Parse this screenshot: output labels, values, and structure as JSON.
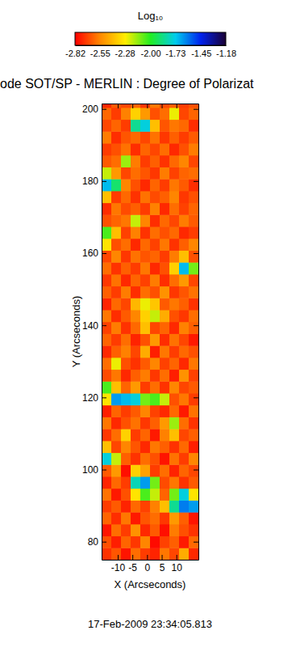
{
  "chart_data": {
    "type": "heatmap",
    "title": "ode SOT/SP - MERLIN : Degree of Polarizat",
    "x_label": "X (Arcseconds)",
    "y_label": "Y (Arcseconds)",
    "annotation": "17-Feb-2009 23:34:05.813",
    "xlim": [
      -15.5,
      17.5
    ],
    "xticks": [
      -10,
      -5,
      0,
      5,
      10
    ],
    "ylim": [
      75,
      201.5
    ],
    "yticks": [
      80,
      100,
      120,
      140,
      160,
      180,
      200
    ],
    "colorbar": {
      "title": "Log₁₀",
      "range": [
        -2.82,
        -1.18
      ],
      "ticks": [
        -2.82,
        -2.55,
        -2.28,
        {
          "value": -2,
          "label": "-2.00"
        },
        -1.73,
        -1.45,
        -1.18
      ]
    },
    "x": [
      -13.85,
      -10.55,
      -7.25,
      -3.95,
      -0.65,
      2.65,
      5.95,
      9.25,
      12.55,
      15.85
    ],
    "y": [
      76.65,
      79.95,
      83.25,
      86.55,
      89.85,
      93.15,
      96.45,
      99.75,
      103.05,
      106.35,
      109.65,
      112.95,
      116.25,
      119.55,
      122.85,
      126.15,
      129.45,
      132.75,
      136.05,
      139.35,
      142.65,
      145.95,
      149.25,
      152.55,
      155.85,
      159.15,
      162.45,
      165.75,
      169.05,
      172.35,
      175.65,
      178.95,
      182.25,
      185.55,
      188.85,
      192.15,
      195.45,
      198.75,
      202.05
    ],
    "z": [
      [
        -2.72,
        -2.65,
        -2.78,
        -2.6,
        -2.7,
        -2.75,
        -2.58,
        -2.68,
        -2.45,
        -2.74
      ],
      [
        -2.66,
        -2.76,
        -2.62,
        -2.71,
        -2.55,
        -2.8,
        -2.69,
        -2.63,
        -2.77,
        -2.61
      ],
      [
        -2.78,
        -2.6,
        -2.7,
        -2.52,
        -2.74,
        -2.64,
        -2.79,
        -2.57,
        -2.66,
        -2.72
      ],
      [
        -2.62,
        -2.73,
        -2.58,
        -2.77,
        -2.65,
        -2.6,
        -2.71,
        -2.5,
        -2.63,
        -2.78
      ],
      [
        -2.7,
        -2.64,
        -2.75,
        -2.61,
        -2.69,
        -2.56,
        -2.4,
        -1.85,
        -1.6,
        -1.65
      ],
      [
        -2.59,
        -2.77,
        -2.66,
        -2.3,
        -2.05,
        -2.2,
        -2.62,
        -2.1,
        -1.75,
        -2.3
      ],
      [
        -2.75,
        -2.61,
        -2.7,
        -1.8,
        -1.65,
        -2.1,
        -2.67,
        -2.58,
        -2.72,
        -2.64
      ],
      [
        -2.64,
        -2.5,
        -2.79,
        -2.35,
        -2.48,
        -2.7,
        -2.6,
        -2.75,
        -2.62,
        -2.68
      ],
      [
        -1.75,
        -2.2,
        -2.63,
        -2.72,
        -2.6,
        -2.66,
        -2.78,
        -2.59,
        -2.7,
        -2.55
      ],
      [
        -2.4,
        -2.68,
        -2.55,
        -2.65,
        -2.74,
        -2.58,
        -2.63,
        -2.72,
        -2.61,
        -2.76
      ],
      [
        -2.71,
        -2.6,
        -2.35,
        -2.7,
        -2.62,
        -2.77,
        -2.56,
        -2.4,
        -2.68,
        -2.63
      ],
      [
        -2.58,
        -2.74,
        -2.66,
        -2.59,
        -2.71,
        -2.63,
        -2.5,
        -2.15,
        -2.6,
        -2.72
      ],
      [
        -2.76,
        -2.62,
        -2.7,
        -2.64,
        -2.55,
        -2.69,
        -2.74,
        -2.61,
        -2.77,
        -2.59
      ],
      [
        -2.3,
        -1.65,
        -1.7,
        -1.75,
        -2.1,
        -2.05,
        -2.2,
        -2.66,
        -2.58,
        -2.7
      ],
      [
        -2.05,
        -2.4,
        -2.62,
        -2.5,
        -2.7,
        -2.6,
        -2.72,
        -2.55,
        -2.68,
        -2.64
      ],
      [
        -2.67,
        -2.58,
        -2.74,
        -2.63,
        -2.57,
        -2.71,
        -2.6,
        -2.76,
        -2.52,
        -2.69
      ],
      [
        -2.6,
        -2.25,
        -2.66,
        -2.72,
        -2.64,
        -2.55,
        -2.69,
        -2.62,
        -2.74,
        -2.58
      ],
      [
        -2.74,
        -2.63,
        -2.56,
        -2.68,
        -2.45,
        -2.76,
        -2.58,
        -2.7,
        -2.61,
        -2.66
      ],
      [
        -2.62,
        -2.7,
        -2.6,
        -2.75,
        -2.66,
        -2.5,
        -2.73,
        -2.59,
        -2.68,
        -2.77
      ],
      [
        -2.69,
        -2.57,
        -2.72,
        -2.61,
        -2.4,
        -2.68,
        -2.62,
        -2.74,
        -2.56,
        -2.63
      ],
      [
        -2.58,
        -2.73,
        -2.64,
        -2.55,
        -2.35,
        -2.2,
        -2.45,
        -2.66,
        -2.71,
        -2.6
      ],
      [
        -2.75,
        -2.61,
        -2.68,
        -2.42,
        -2.25,
        -2.38,
        -2.64,
        -2.58,
        -2.63,
        -2.72
      ],
      [
        -2.63,
        -2.7,
        -2.57,
        -2.73,
        -2.6,
        -2.66,
        -2.52,
        -2.71,
        -2.65,
        -2.59
      ],
      [
        -2.71,
        -2.59,
        -2.74,
        -2.62,
        -2.69,
        -2.57,
        -2.73,
        -2.6,
        -2.5,
        -2.68
      ],
      [
        -2.6,
        -2.72,
        -2.63,
        -2.7,
        -2.58,
        -2.74,
        -2.66,
        -2.35,
        -1.7,
        -2.1
      ],
      [
        -2.68,
        -2.55,
        -2.71,
        -2.59,
        -2.65,
        -2.62,
        -2.7,
        -2.57,
        -2.4,
        -2.66
      ],
      [
        -2.3,
        -2.66,
        -2.6,
        -2.74,
        -2.61,
        -2.69,
        -2.58,
        -2.72,
        -2.63,
        -2.55
      ],
      [
        -2.05,
        -2.4,
        -2.69,
        -2.56,
        -2.72,
        -2.6,
        -2.66,
        -2.61,
        -2.74,
        -2.7
      ],
      [
        -2.66,
        -2.62,
        -2.58,
        -2.2,
        -2.55,
        -2.73,
        -2.61,
        -2.68,
        -2.57,
        -2.64
      ],
      [
        -2.73,
        -2.58,
        -2.67,
        -2.63,
        -2.7,
        -2.56,
        -2.74,
        -2.6,
        -2.69,
        -2.62
      ],
      [
        -2.4,
        -2.7,
        -2.61,
        -2.72,
        -2.59,
        -2.67,
        -2.63,
        -2.55,
        -2.71,
        -2.66
      ],
      [
        -1.7,
        -1.9,
        -2.55,
        -2.66,
        -2.74,
        -2.62,
        -2.7,
        -2.58,
        -2.64,
        -2.73
      ],
      [
        -2.2,
        -2.5,
        -2.68,
        -2.6,
        -2.65,
        -2.71,
        -2.57,
        -2.69,
        -2.62,
        -2.6
      ],
      [
        -2.64,
        -2.6,
        -2.15,
        -2.57,
        -2.7,
        -2.63,
        -2.72,
        -2.61,
        -2.55,
        -2.68
      ],
      [
        -2.7,
        -2.66,
        -2.59,
        -2.73,
        -2.62,
        -2.68,
        -2.6,
        -2.74,
        -2.66,
        -2.57
      ],
      [
        -2.57,
        -2.73,
        -2.65,
        -2.61,
        -2.68,
        -2.59,
        -2.71,
        -2.63,
        -2.7,
        -2.64
      ],
      [
        -2.68,
        -2.62,
        -2.7,
        -1.85,
        -1.75,
        -2.4,
        -2.65,
        -2.58,
        -2.61,
        -2.73
      ],
      [
        -2.61,
        -2.7,
        -2.56,
        -2.35,
        -2.5,
        -2.66,
        -2.6,
        -2.25,
        -2.68,
        -2.62
      ],
      [
        -2.74,
        -2.64,
        -2.68,
        -2.62,
        -2.71,
        -2.58,
        -2.67,
        -2.63,
        -2.7,
        -2.66
      ]
    ]
  }
}
